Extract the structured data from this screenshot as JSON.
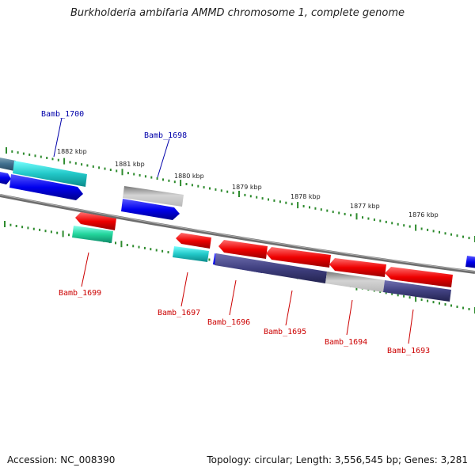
{
  "title": "Burkholderia ambifaria AMMD chromosome 1, complete genome",
  "footer": {
    "accession": "Accession: NC_008390",
    "summary": "Topology: circular; Length: 3,556,545 bp; Genes: 3,281"
  },
  "colors": {
    "forward_label": "#0000aa",
    "reverse_label": "#cc0000",
    "backbone": "#808080",
    "tick": "#2e8b2e"
  },
  "scale_ticks": [
    "1882 kbp",
    "1881 kbp",
    "1880 kbp",
    "1879 kbp",
    "1878 kbp",
    "1877 kbp",
    "1876 kbp"
  ],
  "gene_labels": {
    "forward": [
      "Bamb_1700",
      "Bamb_1698"
    ],
    "reverse": [
      "Bamb_1699",
      "Bamb_1697",
      "Bamb_1696",
      "Bamb_1695",
      "Bamb_1694",
      "Bamb_1693"
    ]
  }
}
